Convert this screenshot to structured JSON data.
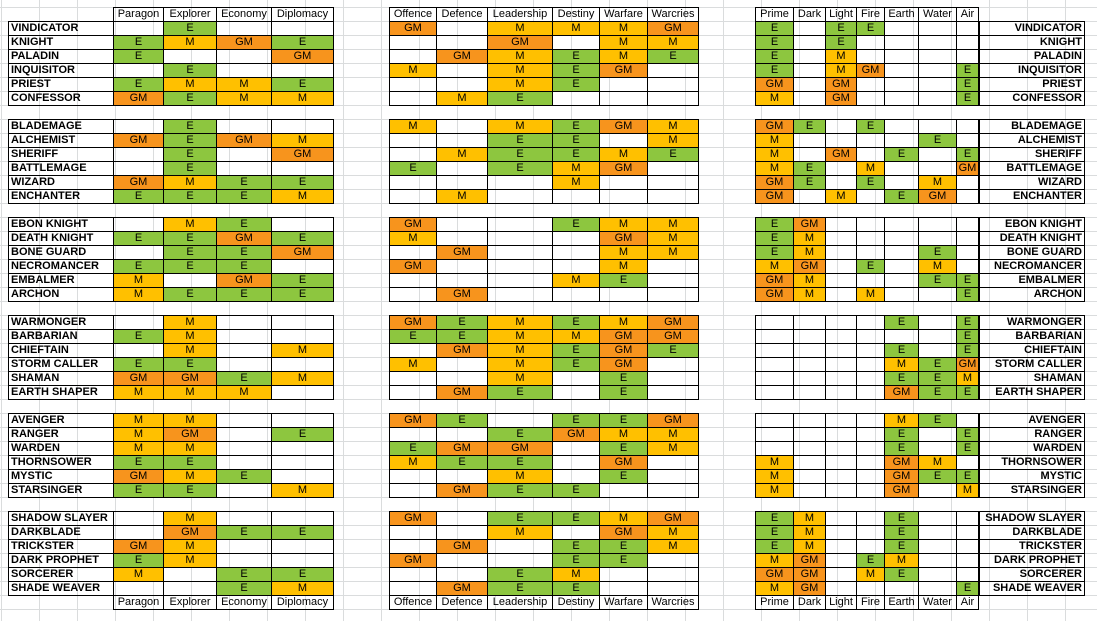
{
  "headers": {
    "group1": [
      "Paragon",
      "Explorer",
      "Economy",
      "Diplomacy"
    ],
    "group2": [
      "Offence",
      "Defence",
      "Leadership",
      "Destiny",
      "Warfare",
      "Warcries"
    ],
    "group3": [
      "Prime",
      "Dark",
      "Light",
      "Fire",
      "Earth",
      "Water",
      "Air"
    ]
  },
  "colors": {
    "E": "#8dc63f",
    "M": "#ffc000",
    "GM": "#f7941d"
  },
  "rows": [
    {
      "name": "VINDICATOR",
      "g1": [
        "",
        "E",
        "",
        ""
      ],
      "g2": [
        "GM",
        "",
        "M",
        "M",
        "M",
        "GM"
      ],
      "g3": [
        "E",
        "",
        "E",
        "E",
        "",
        "",
        ""
      ]
    },
    {
      "name": "KNIGHT",
      "g1": [
        "E",
        "M",
        "GM",
        "E"
      ],
      "g2": [
        "",
        "",
        "GM",
        "",
        "M",
        "M"
      ],
      "g3": [
        "E",
        "",
        "E",
        "",
        "",
        "",
        ""
      ]
    },
    {
      "name": "PALADIN",
      "g1": [
        "E",
        "",
        "",
        "GM"
      ],
      "g2": [
        "",
        "GM",
        "M",
        "E",
        "M",
        "E"
      ],
      "g3": [
        "E",
        "",
        "M",
        "",
        "",
        "",
        ""
      ]
    },
    {
      "name": "INQUISITOR",
      "g1": [
        "",
        "E",
        "",
        ""
      ],
      "g2": [
        "M",
        "",
        "M",
        "E",
        "GM",
        ""
      ],
      "g3": [
        "E",
        "",
        "M",
        "GM",
        "",
        "",
        "E"
      ]
    },
    {
      "name": "PRIEST",
      "g1": [
        "E",
        "M",
        "M",
        "E"
      ],
      "g2": [
        "",
        "",
        "M",
        "E",
        "",
        ""
      ],
      "g3": [
        "GM",
        "",
        "GM",
        "",
        "",
        "",
        "E"
      ]
    },
    {
      "name": "CONFESSOR",
      "g1": [
        "GM",
        "E",
        "M",
        "M"
      ],
      "g2": [
        "",
        "M",
        "E",
        "",
        "",
        ""
      ],
      "g3": [
        "M",
        "",
        "GM",
        "",
        "",
        "",
        "E"
      ]
    },
    {
      "name": "BLADEMAGE",
      "g1": [
        "",
        "E",
        "",
        ""
      ],
      "g2": [
        "M",
        "",
        "M",
        "E",
        "GM",
        "M"
      ],
      "g3": [
        "GM",
        "E",
        "",
        "E",
        "",
        "",
        ""
      ]
    },
    {
      "name": "ALCHEMIST",
      "g1": [
        "GM",
        "E",
        "GM",
        "M"
      ],
      "g2": [
        "",
        "",
        "E",
        "E",
        "",
        "M"
      ],
      "g3": [
        "M",
        "",
        "",
        "",
        "",
        "E",
        ""
      ]
    },
    {
      "name": "SHERIFF",
      "g1": [
        "",
        "E",
        "",
        "GM"
      ],
      "g2": [
        "",
        "M",
        "E",
        "E",
        "M",
        "E"
      ],
      "g3": [
        "M",
        "",
        "GM",
        "",
        "E",
        "",
        "E"
      ]
    },
    {
      "name": "BATTLEMAGE",
      "g1": [
        "",
        "E",
        "",
        ""
      ],
      "g2": [
        "E",
        "",
        "E",
        "M",
        "GM",
        ""
      ],
      "g3": [
        "M",
        "E",
        "",
        "M",
        "",
        "",
        "GM"
      ]
    },
    {
      "name": "WIZARD",
      "g1": [
        "GM",
        "M",
        "E",
        "E"
      ],
      "g2": [
        "",
        "",
        "",
        "M",
        "",
        ""
      ],
      "g3": [
        "GM",
        "E",
        "",
        "E",
        "",
        "M",
        ""
      ]
    },
    {
      "name": "ENCHANTER",
      "g1": [
        "E",
        "E",
        "E",
        "M"
      ],
      "g2": [
        "",
        "M",
        "",
        "",
        "",
        ""
      ],
      "g3": [
        "GM",
        "",
        "M",
        "",
        "E",
        "GM",
        ""
      ]
    },
    {
      "name": "EBON KNIGHT",
      "g1": [
        "",
        "M",
        "E",
        ""
      ],
      "g2": [
        "GM",
        "",
        "",
        "E",
        "M",
        "M"
      ],
      "g3": [
        "E",
        "GM",
        "",
        "",
        "",
        "",
        ""
      ]
    },
    {
      "name": "DEATH KNIGHT",
      "g1": [
        "E",
        "E",
        "GM",
        "E"
      ],
      "g2": [
        "M",
        "",
        "",
        "",
        "GM",
        "M"
      ],
      "g3": [
        "E",
        "M",
        "",
        "",
        "",
        "",
        ""
      ]
    },
    {
      "name": "BONE GUARD",
      "g1": [
        "",
        "E",
        "E",
        "GM"
      ],
      "g2": [
        "",
        "GM",
        "",
        "",
        "M",
        "M"
      ],
      "g3": [
        "E",
        "M",
        "",
        "",
        "",
        "E",
        ""
      ]
    },
    {
      "name": "NECROMANCER",
      "g1": [
        "E",
        "E",
        "E",
        ""
      ],
      "g2": [
        "GM",
        "",
        "",
        "",
        "M",
        ""
      ],
      "g3": [
        "M",
        "GM",
        "",
        "E",
        "",
        "M",
        ""
      ]
    },
    {
      "name": "EMBALMER",
      "g1": [
        "M",
        "",
        "GM",
        "E"
      ],
      "g2": [
        "",
        "",
        "",
        "M",
        "E",
        ""
      ],
      "g3": [
        "GM",
        "M",
        "",
        "",
        "",
        "E",
        "E"
      ]
    },
    {
      "name": "ARCHON",
      "g1": [
        "M",
        "E",
        "E",
        "E"
      ],
      "g2": [
        "",
        "GM",
        "",
        "",
        "",
        ""
      ],
      "g3": [
        "GM",
        "M",
        "",
        "M",
        "",
        "",
        "E"
      ]
    },
    {
      "name": "WARMONGER",
      "g1": [
        "",
        "M",
        "",
        ""
      ],
      "g2": [
        "GM",
        "E",
        "M",
        "E",
        "M",
        "GM"
      ],
      "g3": [
        "",
        "",
        "",
        "",
        "E",
        "",
        "E"
      ]
    },
    {
      "name": "BARBARIAN",
      "g1": [
        "E",
        "M",
        "",
        ""
      ],
      "g2": [
        "E",
        "E",
        "M",
        "M",
        "GM",
        "GM"
      ],
      "g3": [
        "",
        "",
        "",
        "",
        "",
        "",
        "E"
      ]
    },
    {
      "name": "CHIEFTAIN",
      "g1": [
        "",
        "M",
        "",
        "M"
      ],
      "g2": [
        "",
        "GM",
        "M",
        "E",
        "GM",
        "E"
      ],
      "g3": [
        "",
        "",
        "",
        "",
        "E",
        "",
        "E"
      ]
    },
    {
      "name": "STORM CALLER",
      "g1": [
        "E",
        "E",
        "",
        ""
      ],
      "g2": [
        "M",
        "",
        "M",
        "E",
        "GM",
        ""
      ],
      "g3": [
        "",
        "",
        "",
        "",
        "M",
        "E",
        "GM"
      ]
    },
    {
      "name": "SHAMAN",
      "g1": [
        "GM",
        "GM",
        "E",
        "M"
      ],
      "g2": [
        "",
        "",
        "M",
        "",
        "E",
        ""
      ],
      "g3": [
        "",
        "",
        "",
        "",
        "E",
        "E",
        "M"
      ]
    },
    {
      "name": "EARTH SHAPER",
      "g1": [
        "M",
        "M",
        "M",
        ""
      ],
      "g2": [
        "",
        "GM",
        "E",
        "",
        "E",
        ""
      ],
      "g3": [
        "",
        "",
        "",
        "",
        "GM",
        "E",
        "E"
      ]
    },
    {
      "name": "AVENGER",
      "g1": [
        "M",
        "M",
        "",
        ""
      ],
      "g2": [
        "GM",
        "E",
        "",
        "E",
        "E",
        "GM"
      ],
      "g3": [
        "",
        "",
        "",
        "",
        "M",
        "E",
        ""
      ]
    },
    {
      "name": "RANGER",
      "g1": [
        "M",
        "GM",
        "",
        "E"
      ],
      "g2": [
        "",
        "",
        "E",
        "GM",
        "M",
        "M"
      ],
      "g3": [
        "",
        "",
        "",
        "",
        "E",
        "",
        "E"
      ]
    },
    {
      "name": "WARDEN",
      "g1": [
        "M",
        "M",
        "",
        ""
      ],
      "g2": [
        "E",
        "GM",
        "GM",
        "",
        "E",
        "M"
      ],
      "g3": [
        "",
        "",
        "",
        "",
        "E",
        "",
        "E"
      ]
    },
    {
      "name": "THORNSOWER",
      "g1": [
        "E",
        "E",
        "",
        ""
      ],
      "g2": [
        "M",
        "E",
        "E",
        "",
        "GM",
        ""
      ],
      "g3": [
        "M",
        "",
        "",
        "",
        "GM",
        "M",
        ""
      ]
    },
    {
      "name": "MYSTIC",
      "g1": [
        "GM",
        "M",
        "E",
        ""
      ],
      "g2": [
        "",
        "",
        "M",
        "",
        "E",
        ""
      ],
      "g3": [
        "M",
        "",
        "",
        "",
        "GM",
        "E",
        "E"
      ]
    },
    {
      "name": "STARSINGER",
      "g1": [
        "E",
        "E",
        "",
        "M"
      ],
      "g2": [
        "",
        "GM",
        "E",
        "E",
        "",
        ""
      ],
      "g3": [
        "M",
        "",
        "",
        "",
        "GM",
        "",
        "M"
      ]
    },
    {
      "name": "SHADOW SLAYER",
      "g1": [
        "",
        "M",
        "",
        ""
      ],
      "g2": [
        "GM",
        "",
        "E",
        "E",
        "M",
        "GM"
      ],
      "g3": [
        "E",
        "M",
        "",
        "",
        "E",
        "",
        ""
      ]
    },
    {
      "name": "DARKBLADE",
      "g1": [
        "",
        "GM",
        "E",
        "E"
      ],
      "g2": [
        "",
        "",
        "M",
        "",
        "GM",
        "M"
      ],
      "g3": [
        "E",
        "M",
        "",
        "",
        "E",
        "",
        ""
      ]
    },
    {
      "name": "TRICKSTER",
      "g1": [
        "GM",
        "M",
        "",
        ""
      ],
      "g2": [
        "",
        "GM",
        "",
        "E",
        "E",
        "M"
      ],
      "g3": [
        "E",
        "M",
        "",
        "",
        "E",
        "",
        ""
      ]
    },
    {
      "name": "DARK PROPHET",
      "g1": [
        "E",
        "M",
        "",
        ""
      ],
      "g2": [
        "GM",
        "",
        "",
        "E",
        "E",
        ""
      ],
      "g3": [
        "M",
        "GM",
        "",
        "E",
        "M",
        "",
        ""
      ]
    },
    {
      "name": "SORCERER",
      "g1": [
        "M",
        "",
        "E",
        "E"
      ],
      "g2": [
        "",
        "",
        "E",
        "M",
        "",
        ""
      ],
      "g3": [
        "GM",
        "GM",
        "",
        "M",
        "E",
        "",
        ""
      ]
    },
    {
      "name": "SHADE WEAVER",
      "g1": [
        "",
        "",
        "E",
        "M"
      ],
      "g2": [
        "",
        "GM",
        "E",
        "E",
        "",
        ""
      ],
      "g3": [
        "M",
        "GM",
        "",
        "",
        "",
        "",
        "E"
      ]
    }
  ]
}
